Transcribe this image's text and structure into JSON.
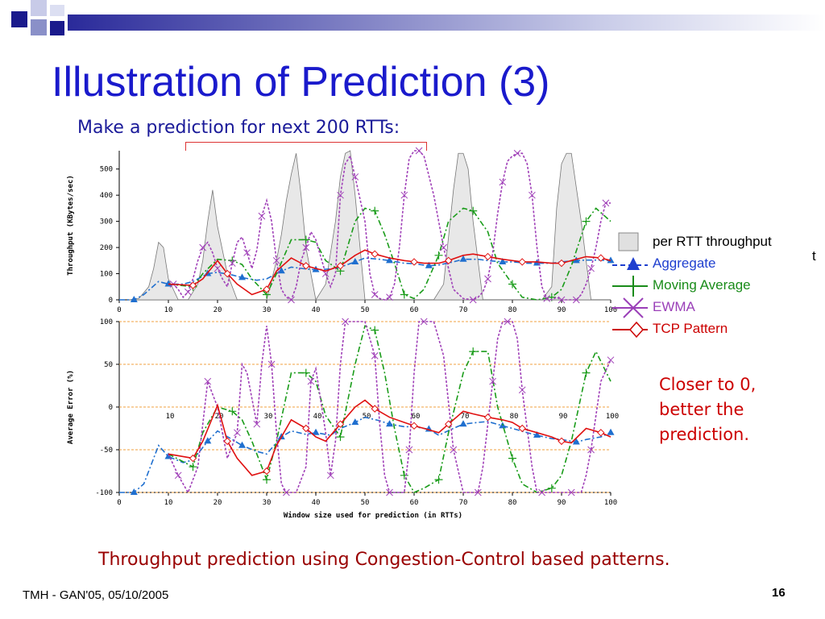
{
  "slide": {
    "title": "Illustration of Prediction (3)",
    "subtitle": "Make a prediction for next 200 RTTs:",
    "note": "Closer to 0,\nbetter the\nprediction.",
    "caption": "Throughput prediction using Congestion-Control based patterns.",
    "footer_left": "TMH - GAN'05, 05/10/2005",
    "page_number": "16",
    "stray_char": "t"
  },
  "legend": {
    "items": [
      {
        "label": "per RTT throughput",
        "color": "#000000",
        "symbol": "box"
      },
      {
        "label": "Aggregate",
        "color": "#1f3fcf",
        "symbol": "triangle"
      },
      {
        "label": "Moving Average",
        "color": "#1a8c1a",
        "symbol": "plus"
      },
      {
        "label": "EWMA",
        "color": "#9a3fb8",
        "symbol": "cross"
      },
      {
        "label": "TCP Pattern",
        "color": "#cc0000",
        "symbol": "diamond"
      }
    ]
  },
  "colors": {
    "title": "#1a1acc",
    "aggregate": "#1f6fcf",
    "moving_average": "#1a9c1a",
    "ewma": "#a040b8",
    "tcp_pattern": "#e01010",
    "throughput_fill": "#e8e8e8",
    "reference_lines": "#f0a040"
  },
  "chart_data": [
    {
      "type": "line",
      "ylabel": "Throughput (KBytes/sec)",
      "xlabel": "",
      "xlim": [
        0,
        100
      ],
      "ylim": [
        0,
        570
      ],
      "xticks": [
        0,
        10,
        20,
        30,
        40,
        50,
        60,
        70,
        80,
        90,
        100
      ],
      "yticks": [
        0,
        100,
        200,
        300,
        400,
        500
      ],
      "bars": {
        "name": "per RTT throughput",
        "x": [
          2,
          4,
          6,
          7,
          8,
          9,
          10,
          12,
          14,
          16,
          17,
          18,
          19,
          20,
          22,
          24,
          26,
          28,
          30,
          32,
          33,
          34,
          35,
          36,
          37,
          38,
          40,
          42,
          44,
          45,
          46,
          47,
          48,
          50,
          52,
          54,
          56,
          58,
          60,
          62,
          64,
          66,
          68,
          69,
          70,
          71,
          72,
          74,
          76,
          78,
          80,
          82,
          84,
          86,
          88,
          89,
          90,
          91,
          92,
          94,
          96,
          98,
          100
        ],
        "values": [
          0,
          5,
          50,
          120,
          220,
          200,
          80,
          0,
          0,
          60,
          150,
          300,
          420,
          280,
          100,
          0,
          0,
          0,
          0,
          150,
          250,
          380,
          480,
          560,
          400,
          200,
          0,
          60,
          300,
          470,
          560,
          570,
          400,
          0,
          0,
          0,
          0,
          0,
          0,
          0,
          0,
          60,
          420,
          560,
          560,
          500,
          300,
          0,
          0,
          0,
          0,
          0,
          0,
          0,
          50,
          350,
          520,
          560,
          560,
          300,
          0,
          0,
          0
        ]
      },
      "series": [
        {
          "name": "Aggregate",
          "x": [
            0,
            3,
            5,
            8,
            10,
            13,
            15,
            18,
            20,
            23,
            25,
            28,
            30,
            33,
            35,
            38,
            40,
            43,
            45,
            48,
            50,
            53,
            55,
            58,
            60,
            63,
            65,
            68,
            70,
            73,
            75,
            78,
            80,
            83,
            85,
            88,
            90,
            93,
            95,
            98,
            100
          ],
          "values": [
            0,
            0,
            20,
            70,
            60,
            60,
            70,
            100,
            105,
            95,
            85,
            75,
            80,
            110,
            125,
            118,
            115,
            118,
            125,
            145,
            160,
            155,
            150,
            140,
            138,
            130,
            133,
            145,
            155,
            155,
            150,
            145,
            145,
            140,
            140,
            140,
            145,
            150,
            152,
            152,
            150
          ]
        },
        {
          "name": "Moving Average",
          "x": [
            10,
            15,
            17,
            20,
            23,
            25,
            27,
            30,
            32,
            35,
            38,
            40,
            42,
            45,
            48,
            50,
            52,
            54,
            56,
            58,
            60,
            62,
            65,
            67,
            70,
            72,
            75,
            77,
            80,
            82,
            85,
            88,
            90,
            92,
            95,
            97,
            100
          ],
          "values": [
            60,
            50,
            100,
            155,
            150,
            135,
            80,
            20,
            100,
            230,
            230,
            220,
            150,
            110,
            300,
            350,
            340,
            250,
            140,
            20,
            5,
            40,
            170,
            300,
            350,
            340,
            260,
            140,
            60,
            10,
            0,
            10,
            40,
            130,
            300,
            350,
            300
          ]
        },
        {
          "name": "EWMA",
          "x": [
            10,
            11,
            12,
            13,
            14,
            15,
            16,
            17,
            18,
            19,
            20,
            21,
            22,
            23,
            24,
            25,
            26,
            27,
            28,
            29,
            30,
            31,
            32,
            33,
            34,
            35,
            36,
            37,
            38,
            39,
            40,
            42,
            43,
            44,
            45,
            46,
            47,
            48,
            50,
            51,
            52,
            53,
            54,
            55,
            56,
            57,
            58,
            59,
            60,
            61,
            62,
            64,
            66,
            68,
            70,
            72,
            73,
            74,
            75,
            76,
            77,
            78,
            79,
            80,
            81,
            82,
            83,
            84,
            85,
            86,
            87,
            88,
            89,
            90,
            91,
            92,
            93,
            94,
            95,
            96,
            97,
            98,
            99,
            100
          ],
          "values": [
            60,
            60,
            40,
            10,
            30,
            80,
            150,
            200,
            220,
            180,
            120,
            80,
            50,
            140,
            220,
            240,
            180,
            120,
            190,
            320,
            380,
            300,
            150,
            40,
            10,
            0,
            50,
            150,
            200,
            260,
            230,
            100,
            50,
            100,
            400,
            520,
            550,
            470,
            300,
            100,
            20,
            5,
            0,
            10,
            60,
            200,
            400,
            540,
            580,
            580,
            550,
            400,
            200,
            40,
            5,
            0,
            10,
            30,
            80,
            180,
            330,
            450,
            530,
            550,
            560,
            560,
            520,
            400,
            200,
            50,
            5,
            0,
            10,
            0,
            0,
            0,
            0,
            20,
            60,
            120,
            200,
            300,
            370,
            370
          ]
        },
        {
          "name": "TCP Pattern",
          "x": [
            10,
            15,
            17,
            20,
            22,
            24,
            27,
            30,
            32,
            35,
            38,
            40,
            42,
            45,
            48,
            50,
            52,
            55,
            58,
            60,
            62,
            65,
            67,
            70,
            72,
            75,
            78,
            80,
            82,
            85,
            88,
            90,
            92,
            95,
            98,
            100
          ],
          "values": [
            60,
            55,
            80,
            150,
            100,
            60,
            20,
            40,
            110,
            160,
            130,
            120,
            110,
            130,
            170,
            190,
            175,
            160,
            150,
            145,
            140,
            140,
            150,
            170,
            175,
            165,
            155,
            150,
            145,
            145,
            140,
            140,
            150,
            165,
            160,
            150
          ]
        }
      ]
    },
    {
      "type": "line",
      "ylabel": "Average Error (%)",
      "xlabel": "Window size used for prediction (in RTTs)",
      "xlim": [
        0,
        100
      ],
      "ylim": [
        -100,
        100
      ],
      "xticks": [
        0,
        10,
        20,
        30,
        40,
        50,
        60,
        70,
        80,
        90,
        100
      ],
      "yticks": [
        -100,
        -50,
        0,
        50,
        100
      ],
      "inner_xticks": [
        10,
        20,
        30,
        40,
        50,
        60,
        70,
        80,
        90,
        100
      ],
      "reference_lines": [
        100,
        50,
        0,
        -50,
        -100
      ],
      "series": [
        {
          "name": "Aggregate",
          "x": [
            0,
            3,
            5,
            8,
            10,
            13,
            15,
            18,
            20,
            23,
            25,
            28,
            30,
            33,
            35,
            38,
            40,
            43,
            45,
            48,
            50,
            53,
            55,
            58,
            60,
            63,
            65,
            68,
            70,
            73,
            75,
            78,
            80,
            83,
            85,
            88,
            90,
            93,
            95,
            98,
            100
          ],
          "values": [
            -100,
            -100,
            -90,
            -45,
            -58,
            -65,
            -62,
            -40,
            -28,
            -38,
            -45,
            -52,
            -55,
            -35,
            -28,
            -32,
            -30,
            -33,
            -25,
            -18,
            -12,
            -16,
            -20,
            -23,
            -23,
            -26,
            -33,
            -25,
            -20,
            -18,
            -17,
            -22,
            -25,
            -30,
            -33,
            -37,
            -38,
            -41,
            -38,
            -35,
            -30
          ]
        },
        {
          "name": "Moving Average",
          "x": [
            10,
            15,
            17,
            20,
            23,
            25,
            27,
            30,
            32,
            35,
            38,
            40,
            42,
            45,
            48,
            50,
            52,
            54,
            56,
            58,
            60,
            62,
            65,
            67,
            70,
            72,
            75,
            77,
            80,
            82,
            85,
            88,
            90,
            92,
            95,
            97,
            100
          ],
          "values": [
            -55,
            -70,
            -30,
            0,
            -5,
            -15,
            -40,
            -85,
            -40,
            40,
            40,
            30,
            -10,
            -35,
            50,
            95,
            90,
            40,
            -25,
            -80,
            -100,
            -95,
            -85,
            -30,
            40,
            65,
            65,
            0,
            -60,
            -90,
            -100,
            -95,
            -80,
            -40,
            40,
            65,
            30
          ]
        },
        {
          "name": "EWMA",
          "x": [
            10,
            12,
            14,
            16,
            18,
            20,
            22,
            24,
            25,
            26,
            28,
            29,
            30,
            31,
            32,
            33,
            34,
            36,
            38,
            39,
            40,
            42,
            43,
            44,
            45,
            46,
            48,
            50,
            52,
            53,
            54,
            55,
            56,
            58,
            59,
            60,
            61,
            62,
            64,
            66,
            68,
            70,
            72,
            73,
            74,
            75,
            76,
            77,
            78,
            79,
            80,
            81,
            82,
            84,
            85,
            86,
            88,
            90,
            92,
            94,
            95,
            96,
            97,
            98,
            100
          ],
          "values": [
            -55,
            -80,
            -100,
            -70,
            30,
            0,
            -60,
            -30,
            50,
            40,
            -20,
            50,
            95,
            50,
            -30,
            -90,
            -100,
            -100,
            -70,
            30,
            45,
            -30,
            -80,
            -40,
            50,
            100,
            100,
            100,
            60,
            -20,
            -80,
            -100,
            -100,
            -100,
            -50,
            40,
            100,
            100,
            100,
            60,
            -50,
            -100,
            -100,
            -100,
            -70,
            -20,
            30,
            80,
            100,
            100,
            100,
            80,
            20,
            -70,
            -100,
            -100,
            -100,
            -100,
            -100,
            -100,
            -80,
            -50,
            -10,
            30,
            55
          ]
        },
        {
          "name": "TCP Pattern",
          "x": [
            10,
            15,
            17,
            20,
            22,
            24,
            27,
            30,
            32,
            35,
            38,
            40,
            42,
            45,
            48,
            50,
            52,
            55,
            58,
            60,
            62,
            65,
            67,
            70,
            72,
            75,
            78,
            80,
            82,
            85,
            88,
            90,
            92,
            95,
            98,
            100
          ],
          "values": [
            -55,
            -60,
            -40,
            2,
            -40,
            -60,
            -80,
            -75,
            -45,
            -15,
            -25,
            -35,
            -40,
            -20,
            0,
            8,
            -2,
            -12,
            -18,
            -22,
            -25,
            -30,
            -20,
            -5,
            -8,
            -12,
            -15,
            -18,
            -25,
            -30,
            -35,
            -40,
            -42,
            -25,
            -30,
            -35
          ]
        }
      ]
    }
  ]
}
